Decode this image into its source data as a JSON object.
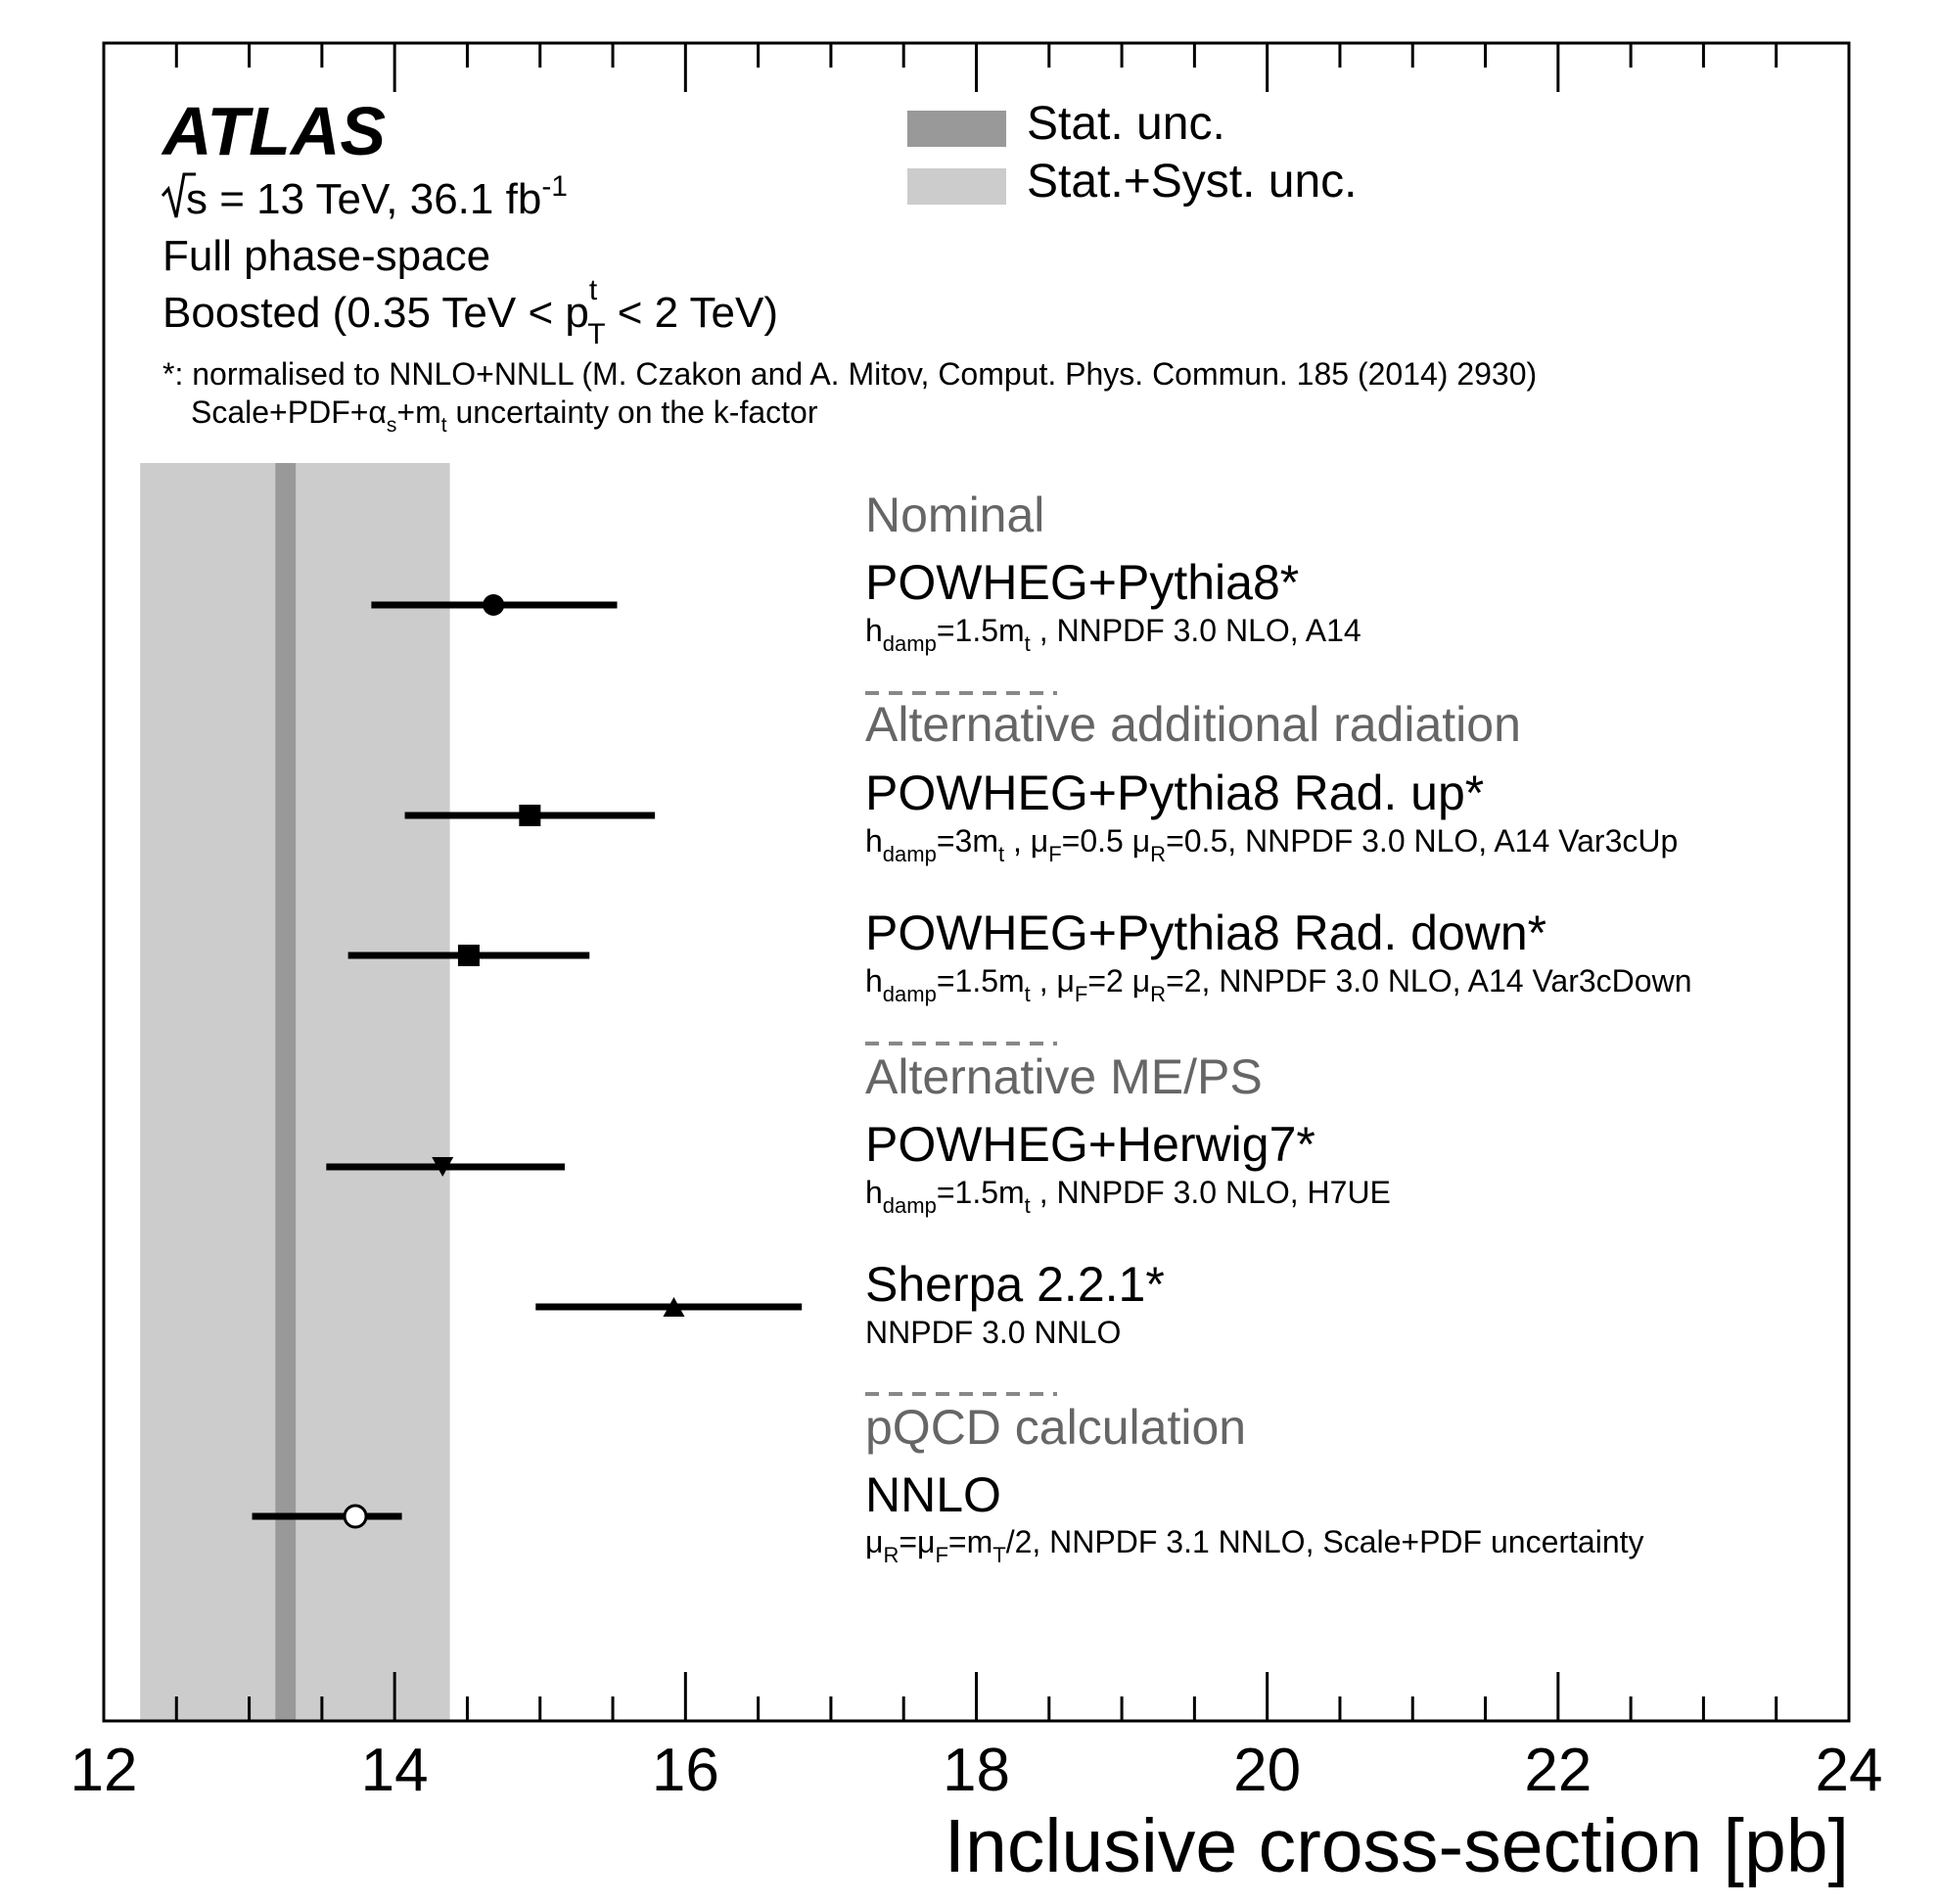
{
  "experiment": "ATLAS",
  "energy_prefix": "s = 13 TeV, 36.1 fb",
  "energy_exponent": "-1",
  "phase_space": "Full phase-space",
  "boosted_prefix": "Boosted (0.35 TeV < p",
  "boosted_sup": "t",
  "boosted_sub": "T",
  "boosted_suffix": " < 2 TeV)",
  "note_line1": "*: normalised to NNLO+NNLL (M. Czakon and A. Mitov, Comput. Phys. Commun. 185 (2014) 2930)",
  "note_line2_a": "Scale+PDF+",
  "note_line2_alpha": "α",
  "note_line2_s": "s",
  "note_line2_b": "+m",
  "note_line2_t": "t",
  "note_line2_c": " uncertainty on the k-factor",
  "legend": [
    {
      "label": "Stat. unc.",
      "color": "#999999"
    },
    {
      "label": "Stat.+Syst. unc.",
      "color": "#cccccc"
    }
  ],
  "sections": {
    "nominal": "Nominal",
    "radiation": "Alternative additional radiation",
    "meps": "Alternative ME/PS",
    "pqcd": "pQCD calculation"
  },
  "labels": {
    "powheg_pythia8": "POWHEG+Pythia8*",
    "powheg_pythia8_sub": {
      "a": "h",
      "a_sub": "damp",
      "b": "=1.5m",
      "b_sub": "t",
      "c": " , NNPDF 3.0 NLO, A14"
    },
    "rad_up": "POWHEG+Pythia8 Rad. up*",
    "rad_up_sub": {
      "a": "h",
      "a_sub": "damp",
      "b": "=3m",
      "b_sub": "t",
      "c": " , μ",
      "c_sub": "F",
      "d": "=0.5 μ",
      "d_sub": "R",
      "e": "=0.5, NNPDF 3.0 NLO, A14 Var3cUp"
    },
    "rad_down": "POWHEG+Pythia8 Rad. down*",
    "rad_down_sub": {
      "a": "h",
      "a_sub": "damp",
      "b": "=1.5m",
      "b_sub": "t",
      "c": " , μ",
      "c_sub": "F",
      "d": "=2 μ",
      "d_sub": "R",
      "e": "=2, NNPDF 3.0 NLO, A14 Var3cDown"
    },
    "herwig7": "POWHEG+Herwig7*",
    "herwig7_sub": {
      "a": "h",
      "a_sub": "damp",
      "b": "=1.5m",
      "b_sub": "t",
      "c": " , NNPDF 3.0 NLO, H7UE"
    },
    "sherpa": "Sherpa 2.2.1*",
    "sherpa_sub": "NNPDF 3.0 NNLO",
    "nnlo": "NNLO",
    "nnlo_sub": {
      "a": "μ",
      "a_sub": "R",
      "b": "=μ",
      "b_sub": "F",
      "c": "=m",
      "c_sub": "T",
      "d": "/2, NNPDF 3.1 NNLO, Scale+PDF uncertainty"
    }
  },
  "chart_data": {
    "type": "scatter",
    "xlabel": "Inclusive cross-section [pb]",
    "xlim": [
      12,
      24
    ],
    "x_ticks": [
      "12",
      "14",
      "16",
      "18",
      "20",
      "22",
      "24"
    ],
    "measurement": {
      "value": 13.25,
      "stat_band": [
        13.18,
        13.32
      ],
      "stat_syst_band": [
        12.25,
        14.38
      ]
    },
    "predictions": [
      {
        "name": "POWHEG+Pythia8*",
        "value": 14.68,
        "low": 13.84,
        "high": 15.53,
        "marker": "circle"
      },
      {
        "name": "POWHEG+Pythia8 Rad. up*",
        "value": 14.93,
        "low": 14.07,
        "high": 15.79,
        "marker": "square"
      },
      {
        "name": "POWHEG+Pythia8 Rad. down*",
        "value": 14.51,
        "low": 13.68,
        "high": 15.34,
        "marker": "square"
      },
      {
        "name": "POWHEG+Herwig7*",
        "value": 14.33,
        "low": 13.53,
        "high": 15.17,
        "marker": "triangle-down"
      },
      {
        "name": "Sherpa 2.2.1*",
        "value": 15.92,
        "low": 14.97,
        "high": 16.8,
        "marker": "triangle-up"
      },
      {
        "name": "NNLO",
        "value": 13.73,
        "low": 13.02,
        "high": 14.05,
        "marker": "open-circle"
      }
    ]
  }
}
